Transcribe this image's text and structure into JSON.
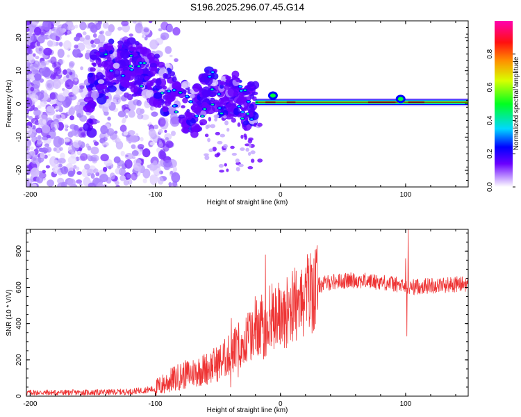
{
  "title": "S196.2025.296.07.45.G14",
  "colorbar": {
    "label": "Normalized spectral amplitude",
    "ticks": [
      "0.0",
      "0.2",
      "0.4",
      "0.6",
      "0.8"
    ],
    "tick_values": [
      0.0,
      0.2,
      0.4,
      0.6,
      0.8
    ],
    "range": [
      0.0,
      1.0
    ],
    "colors": [
      "#ffffff",
      "#b38cff",
      "#6a00ff",
      "#0000ff",
      "#00d8ff",
      "#00ff00",
      "#ffff00",
      "#ff8000",
      "#ff0000",
      "#ff00b0"
    ]
  },
  "chart_data": [
    {
      "type": "heatmap",
      "title": "S196.2025.296.07.45.G14",
      "xlabel": "Height of straight line (km)",
      "ylabel": "Frequency (Hz)",
      "xlim": [
        -203,
        150
      ],
      "ylim": [
        -25,
        25
      ],
      "xticks": [
        -200,
        -100,
        0,
        100
      ],
      "xtick_labels": [
        "-200",
        "-100",
        "0",
        "100"
      ],
      "yticks": [
        -20,
        -10,
        0,
        10,
        20
      ],
      "ytick_labels": [
        "-20",
        "-10",
        "0",
        "10",
        "20"
      ],
      "ridge": [
        {
          "x": -150,
          "y": 8
        },
        {
          "x": -130,
          "y": 12
        },
        {
          "x": -110,
          "y": 10
        },
        {
          "x": -95,
          "y": 6
        },
        {
          "x": -85,
          "y": 2
        },
        {
          "x": -70,
          "y": -3
        },
        {
          "x": -55,
          "y": 5
        },
        {
          "x": -45,
          "y": 1
        },
        {
          "x": -35,
          "y": 3
        },
        {
          "x": -28,
          "y": -1
        },
        {
          "x": -20,
          "y": 1
        },
        {
          "x": -10,
          "y": 1
        },
        {
          "x": 0,
          "y": 1
        },
        {
          "x": 20,
          "y": 1
        },
        {
          "x": 40,
          "y": 1
        },
        {
          "x": 60,
          "y": 0.5
        },
        {
          "x": 80,
          "y": 0
        },
        {
          "x": 95,
          "y": 0
        },
        {
          "x": 100,
          "y": 0
        },
        {
          "x": 120,
          "y": 0
        },
        {
          "x": 150,
          "y": 0
        }
      ]
    },
    {
      "type": "line",
      "xlabel": "Height of straight line (km)",
      "ylabel": "SNR (10 * V/V)",
      "xlim": [
        -203,
        150
      ],
      "ylim": [
        0,
        920
      ],
      "xticks": [
        -200,
        -100,
        0,
        100
      ],
      "xtick_labels": [
        "-200",
        "-100",
        "0",
        "100"
      ],
      "yticks": [
        0,
        200,
        400,
        600,
        800
      ],
      "ytick_labels": [
        "0",
        "200",
        "400",
        "600",
        "800"
      ],
      "series": [
        {
          "name": "SNR",
          "color": "#ee3333",
          "trend": [
            {
              "x": -203,
              "y": 20
            },
            {
              "x": -150,
              "y": 20
            },
            {
              "x": -120,
              "y": 25
            },
            {
              "x": -100,
              "y": 40
            },
            {
              "x": -90,
              "y": 80
            },
            {
              "x": -80,
              "y": 110
            },
            {
              "x": -70,
              "y": 130
            },
            {
              "x": -60,
              "y": 150
            },
            {
              "x": -50,
              "y": 180
            },
            {
              "x": -40,
              "y": 230
            },
            {
              "x": -30,
              "y": 300
            },
            {
              "x": -20,
              "y": 360
            },
            {
              "x": -10,
              "y": 400
            },
            {
              "x": 0,
              "y": 440
            },
            {
              "x": 10,
              "y": 500
            },
            {
              "x": 20,
              "y": 560
            },
            {
              "x": 30,
              "y": 610
            },
            {
              "x": 40,
              "y": 630
            },
            {
              "x": 60,
              "y": 640
            },
            {
              "x": 80,
              "y": 630
            },
            {
              "x": 90,
              "y": 620
            },
            {
              "x": 100,
              "y": 600
            },
            {
              "x": 120,
              "y": 610
            },
            {
              "x": 150,
              "y": 620
            }
          ],
          "spikes": [
            {
              "x": -12,
              "y": 780
            },
            {
              "x": -15,
              "y": 560
            },
            {
              "x": -5,
              "y": 490
            },
            {
              "x": 2,
              "y": 540
            },
            {
              "x": 100,
              "y": 760
            },
            {
              "x": 101,
              "y": 330
            },
            {
              "x": 102,
              "y": 920
            }
          ]
        }
      ]
    }
  ]
}
